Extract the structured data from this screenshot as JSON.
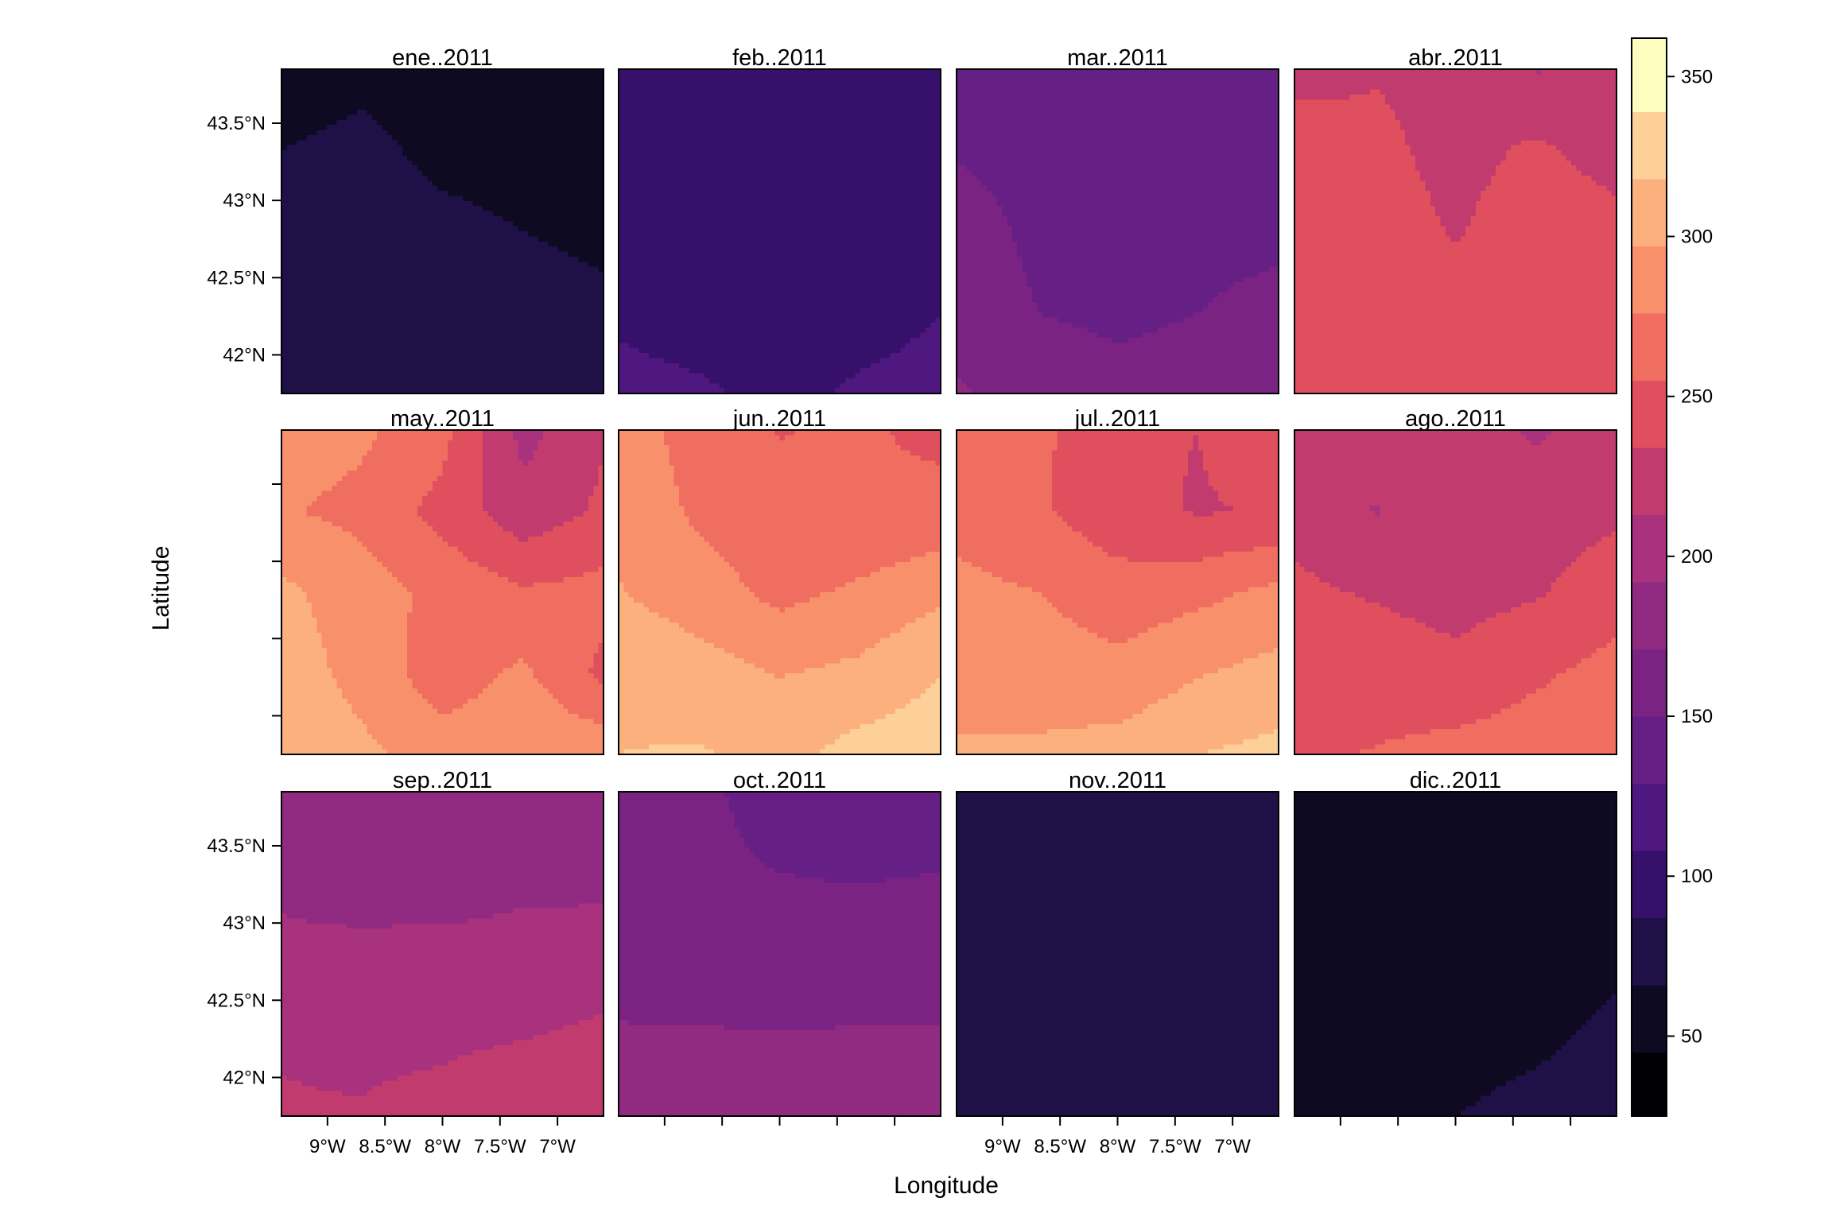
{
  "chart_data": {
    "type": "heatmap",
    "xlabel": "Longitude",
    "ylabel": "Latitude",
    "x_ticks": [
      "9°W",
      "8.5°W",
      "8°W",
      "7.5°W",
      "7°W"
    ],
    "x_tick_values": [
      -9.0,
      -8.5,
      -8.0,
      -7.5,
      -7.0
    ],
    "xlim": [
      -9.4,
      -6.6
    ],
    "y_ticks": [
      "42°N",
      "42.5°N",
      "43°N",
      "43.5°N"
    ],
    "y_tick_values": [
      42.0,
      42.5,
      43.0,
      43.5
    ],
    "ylim": [
      41.75,
      43.85
    ],
    "grid": false,
    "legend": {
      "placement": "right",
      "ticks": [
        "50",
        "100",
        "150",
        "200",
        "250",
        "300",
        "350"
      ],
      "tick_values": [
        50,
        100,
        150,
        200,
        250,
        300,
        350
      ],
      "range": [
        25,
        362
      ],
      "bins": [
        {
          "from": 25,
          "to": 45,
          "color": "#000004"
        },
        {
          "from": 45,
          "to": 66,
          "color": "#0d0a22"
        },
        {
          "from": 66,
          "to": 87,
          "color": "#1f1147"
        },
        {
          "from": 87,
          "to": 108,
          "color": "#36106b"
        },
        {
          "from": 108,
          "to": 129,
          "color": "#4f1880"
        },
        {
          "from": 129,
          "to": 150,
          "color": "#661f85"
        },
        {
          "from": 150,
          "to": 171,
          "color": "#7b2382"
        },
        {
          "from": 171,
          "to": 192,
          "color": "#912b81"
        },
        {
          "from": 192,
          "to": 213,
          "color": "#a8327d"
        },
        {
          "from": 213,
          "to": 234,
          "color": "#c13b6e"
        },
        {
          "from": 234,
          "to": 255,
          "color": "#e04f5e"
        },
        {
          "from": 255,
          "to": 276,
          "color": "#f06e5f"
        },
        {
          "from": 276,
          "to": 297,
          "color": "#f8906c"
        },
        {
          "from": 297,
          "to": 318,
          "color": "#fcb07e"
        },
        {
          "from": 318,
          "to": 339,
          "color": "#fdd09a"
        },
        {
          "from": 339,
          "to": 362,
          "color": "#fcfdbf"
        }
      ]
    },
    "panels": [
      {
        "title": "ene..2011",
        "values": [
          [
            58,
            62,
            60,
            58,
            56
          ],
          [
            66,
            70,
            62,
            60,
            58
          ],
          [
            72,
            74,
            70,
            66,
            64
          ],
          [
            75,
            73,
            72,
            70,
            68
          ],
          [
            80,
            76,
            68,
            72,
            74
          ]
        ]
      },
      {
        "title": "feb..2011",
        "values": [
          [
            98,
            100,
            98,
            99,
            100
          ],
          [
            100,
            99,
            100,
            98,
            100
          ],
          [
            100,
            98,
            100,
            102,
            106
          ],
          [
            106,
            102,
            100,
            103,
            108
          ],
          [
            112,
            110,
            104,
            110,
            112
          ]
        ]
      },
      {
        "title": "mar..2011",
        "values": [
          [
            140,
            142,
            144,
            142,
            140
          ],
          [
            148,
            144,
            142,
            140,
            138
          ],
          [
            160,
            145,
            140,
            142,
            144
          ],
          [
            168,
            150,
            144,
            150,
            158
          ],
          [
            172,
            168,
            160,
            162,
            170
          ]
        ]
      },
      {
        "title": "abr..2011",
        "values": [
          [
            222,
            232,
            228,
            212,
            218
          ],
          [
            252,
            240,
            226,
            238,
            224
          ],
          [
            252,
            246,
            232,
            248,
            242
          ],
          [
            252,
            250,
            248,
            238,
            246
          ],
          [
            254,
            248,
            250,
            252,
            252
          ]
        ]
      },
      {
        "title": "may..2011",
        "values": [
          [
            288,
            280,
            262,
            206,
            232
          ],
          [
            278,
            270,
            248,
            220,
            238
          ],
          [
            302,
            286,
            270,
            258,
            262
          ],
          [
            308,
            290,
            264,
            280,
            250
          ],
          [
            312,
            302,
            286,
            294,
            290
          ]
        ]
      },
      {
        "title": "jun..2011",
        "values": [
          [
            288,
            266,
            254,
            258,
            250
          ],
          [
            292,
            272,
            262,
            256,
            262
          ],
          [
            298,
            286,
            270,
            280,
            292
          ],
          [
            314,
            306,
            296,
            302,
            318
          ],
          [
            318,
            320,
            312,
            326,
            330
          ]
        ]
      },
      {
        "title": "jul..2011",
        "values": [
          [
            272,
            260,
            238,
            234,
            252
          ],
          [
            268,
            258,
            242,
            232,
            236
          ],
          [
            282,
            276,
            264,
            270,
            282
          ],
          [
            294,
            288,
            282,
            296,
            304
          ],
          [
            298,
            300,
            306,
            318,
            324
          ]
        ]
      },
      {
        "title": "ago..2011",
        "values": [
          [
            232,
            224,
            226,
            210,
            226
          ],
          [
            228,
            212,
            222,
            224,
            230
          ],
          [
            238,
            232,
            226,
            232,
            246
          ],
          [
            248,
            246,
            240,
            252,
            262
          ],
          [
            252,
            256,
            262,
            266,
            266
          ]
        ]
      },
      {
        "title": "sep..2011",
        "values": [
          [
            180,
            182,
            178,
            184,
            182
          ],
          [
            188,
            176,
            178,
            186,
            184
          ],
          [
            196,
            200,
            200,
            200,
            204
          ],
          [
            212,
            210,
            210,
            212,
            216
          ],
          [
            214,
            214,
            218,
            226,
            226
          ]
        ]
      },
      {
        "title": "oct..2011",
        "values": [
          [
            150,
            152,
            146,
            138,
            136
          ],
          [
            156,
            152,
            150,
            148,
            150
          ],
          [
            166,
            162,
            160,
            162,
            164
          ],
          [
            172,
            172,
            172,
            172,
            172
          ],
          [
            174,
            174,
            174,
            174,
            174
          ]
        ]
      },
      {
        "title": "nov..2011",
        "values": [
          [
            74,
            70,
            76,
            70,
            76
          ],
          [
            78,
            78,
            76,
            70,
            78
          ],
          [
            66,
            72,
            78,
            78,
            80
          ],
          [
            78,
            80,
            80,
            80,
            80
          ],
          [
            82,
            82,
            80,
            82,
            82
          ]
        ]
      },
      {
        "title": "dic..2011",
        "values": [
          [
            58,
            58,
            58,
            58,
            58
          ],
          [
            58,
            58,
            58,
            58,
            58
          ],
          [
            58,
            58,
            58,
            58,
            62
          ],
          [
            58,
            58,
            58,
            62,
            70
          ],
          [
            58,
            60,
            66,
            72,
            76
          ]
        ]
      }
    ]
  }
}
